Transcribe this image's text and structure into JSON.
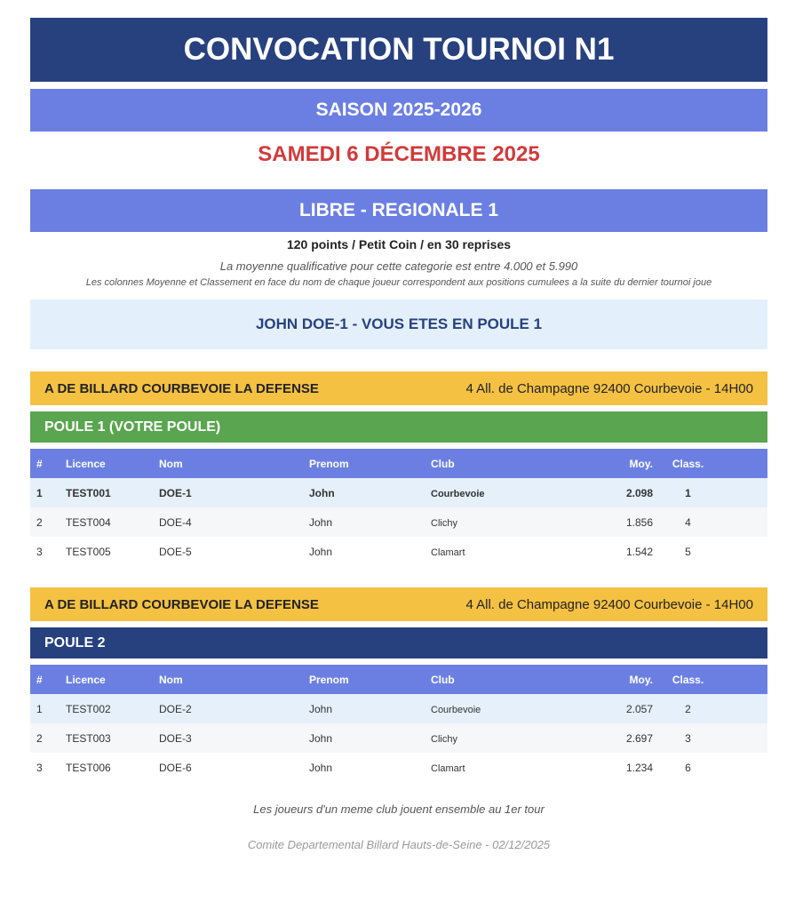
{
  "title": "CONVOCATION TOURNOI N1",
  "season": "SAISON 2025-2026",
  "date": "SAMEDI 6 DÉCEMBRE 2025",
  "category": "LIBRE - REGIONALE 1",
  "conditions": "120 points  /  Petit Coin  /  en 30 reprises",
  "qualifying_average": "La moyenne qualificative pour cette categorie est entre 4.000 et 5.990",
  "note": "Les colonnes Moyenne et Classement en face du nom de chaque joueur correspondent aux positions cumulees a la suite du dernier tournoi joue",
  "player_banner": "JOHN DOE-1 - VOUS ETES EN POULE 1",
  "columns": [
    "#",
    "Licence",
    "Nom",
    "Prenom",
    "Club",
    "Moy.",
    "Class."
  ],
  "colors": {
    "dark_blue": "#27417f",
    "accent_blue": "#6b7fe3",
    "red": "#d23a3a",
    "yellow": "#f4c142",
    "green": "#5aa54f",
    "highlight": "#e5f0fa"
  },
  "groups": [
    {
      "venue": "A DE BILLARD COURBEVOIE LA DEFENSE",
      "address": "4 All. de Champagne 92400 Courbevoie  -  14H00",
      "name": "POULE 1 (VOTRE POULE)",
      "rows": [
        [
          "1",
          "TEST001",
          "DOE-1",
          "John",
          "Courbevoie",
          "2.098",
          "1"
        ],
        [
          "2",
          "TEST004",
          "DOE-4",
          "John",
          "Clichy",
          "1.856",
          "4"
        ],
        [
          "3",
          "TEST005",
          "DOE-5",
          "John",
          "Clamart",
          "1.542",
          "5"
        ]
      ]
    },
    {
      "venue": "A DE BILLARD COURBEVOIE LA DEFENSE",
      "address": "4 All. de Champagne 92400 Courbevoie  -  14H00",
      "name": "POULE 2",
      "rows": [
        [
          "1",
          "TEST002",
          "DOE-2",
          "John",
          "Courbevoie",
          "2.057",
          "2"
        ],
        [
          "2",
          "TEST003",
          "DOE-3",
          "John",
          "Clichy",
          "2.697",
          "3"
        ],
        [
          "3",
          "TEST006",
          "DOE-6",
          "John",
          "Clamart",
          "1.234",
          "6"
        ]
      ]
    }
  ],
  "footer_note": "Les joueurs d'un meme club jouent ensemble au 1er tour",
  "footer_credit": "Comite Departemental Billard Hauts-de-Seine - 02/12/2025"
}
